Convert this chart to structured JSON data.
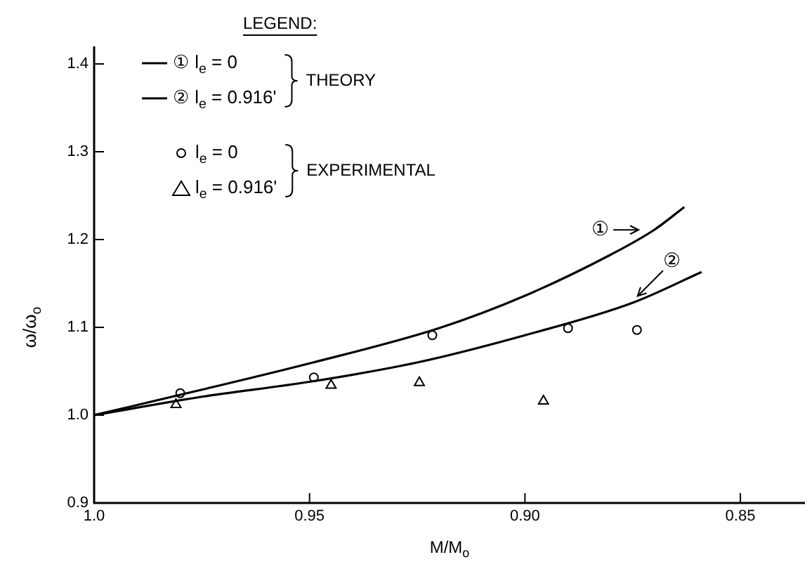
{
  "chart_data": {
    "type": "line",
    "xlabel": "M/M$_{o}$",
    "ylabel": "ω/ω$_{o}$",
    "legend_title": "LEGEND:",
    "xlim": [
      1.0,
      0.835
    ],
    "ylim": [
      0.9,
      1.42
    ],
    "xticks": [
      {
        "value": 1.0,
        "label": "1.0"
      },
      0.95,
      {
        "value": 0.9,
        "label": "0.90"
      },
      0.85
    ],
    "yticks": [
      0.9,
      {
        "value": 1.0,
        "label": "1.0"
      },
      1.1,
      1.2,
      1.3,
      1.4
    ],
    "grid": false,
    "legend": "top left",
    "line_style": "solid",
    "series": [
      {
        "name": "① l$_{e}$ = 0",
        "type": "line",
        "color": "#000000",
        "marker": "none",
        "x": [
          0.863,
          0.87,
          0.88,
          0.9,
          0.92,
          0.95,
          0.975,
          1.0
        ],
        "values": [
          1.237,
          1.211,
          1.183,
          1.136,
          1.099,
          1.059,
          1.029,
          1.0
        ]
      },
      {
        "name": "② l$_{e}$ = 0.916'",
        "type": "line",
        "color": "#000000",
        "marker": "none",
        "x": [
          0.859,
          0.875,
          0.9,
          0.925,
          0.95,
          0.975,
          1.0
        ],
        "values": [
          1.163,
          1.128,
          1.091,
          1.06,
          1.038,
          1.021,
          1.0
        ]
      },
      {
        "name": "l$_{e}$ = 0",
        "type": "scatter",
        "color": "#000000",
        "marker": "circle",
        "x": [
          0.98,
          0.949,
          0.9215,
          0.89,
          0.874
        ],
        "values": [
          1.025,
          1.043,
          1.091,
          1.099,
          1.097
        ]
      },
      {
        "name": "l$_{e}$ = 0.916'",
        "type": "scatter",
        "color": "#000000",
        "marker": "triangle",
        "x": [
          0.981,
          0.945,
          0.9245,
          0.8957
        ],
        "values": [
          1.012,
          1.034,
          1.037,
          1.016
        ]
      }
    ],
    "annotations": [
      "THEORY",
      "EXPERIMENTAL",
      {
        "text": "①",
        "x": 0.872,
        "y": 1.211
      },
      {
        "text": "②",
        "x": 0.875,
        "y": 1.13
      }
    ]
  }
}
